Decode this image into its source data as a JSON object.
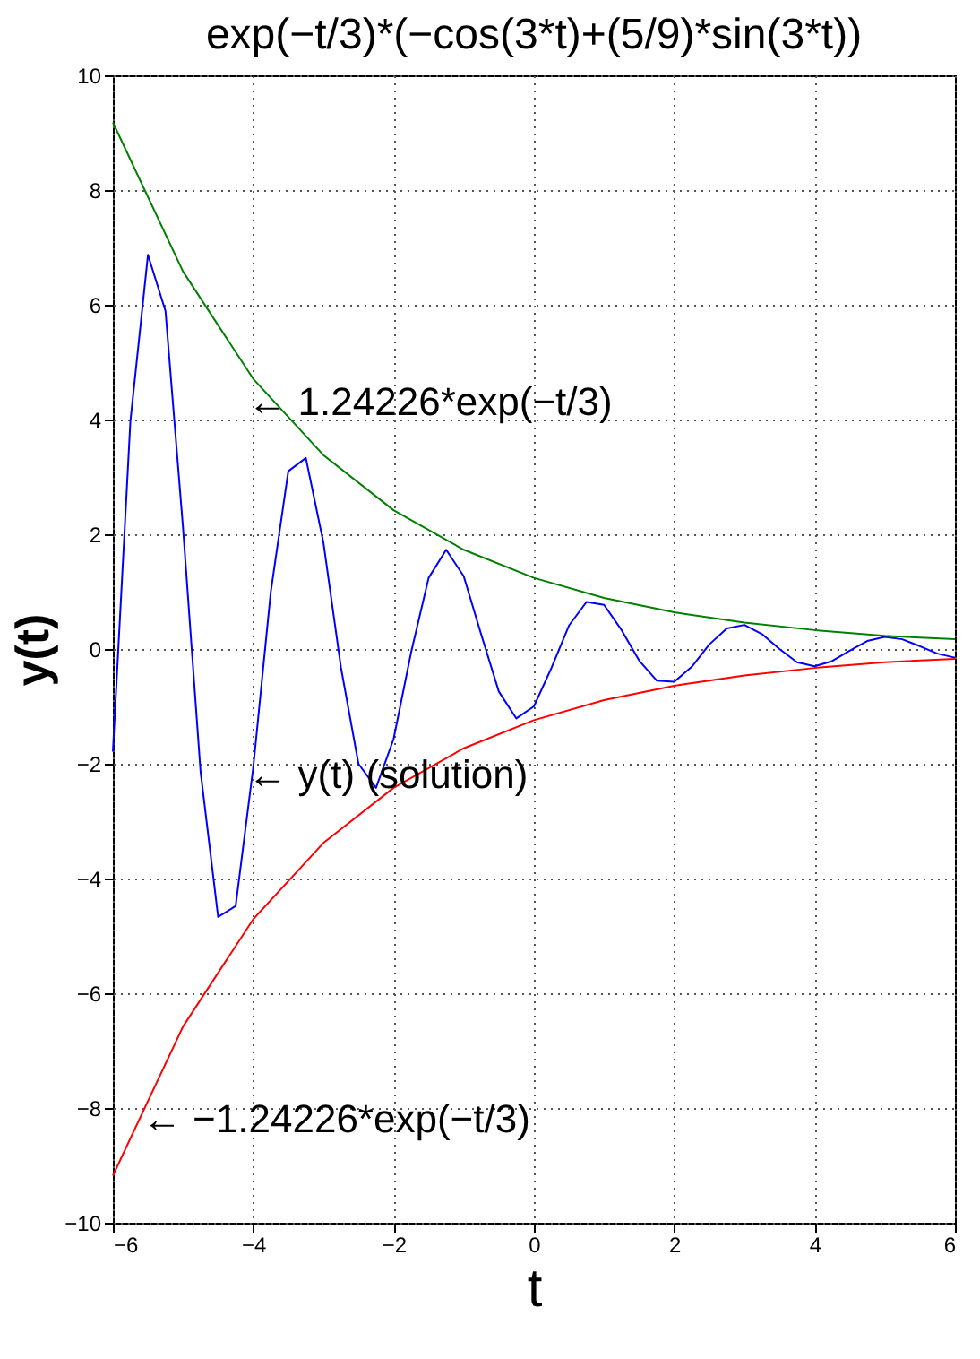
{
  "chart_data": {
    "type": "line",
    "title": "exp(−t/3)*(−cos(3*t)+(5/9)*sin(3*t))",
    "xlabel": "t",
    "ylabel": "y(t)",
    "xlim": [
      -6,
      6
    ],
    "ylim": [
      -10,
      10
    ],
    "xticks": [
      -6,
      -4,
      -2,
      0,
      2,
      4,
      6
    ],
    "yticks": [
      -10,
      -8,
      -6,
      -4,
      -2,
      0,
      2,
      4,
      6,
      8,
      10
    ],
    "grid": true,
    "line_style": "solid",
    "series": [
      {
        "color": "#0000ff",
        "x": [
          -6,
          -5.75,
          -5.5,
          -5.25,
          -5,
          -4.75,
          -4.5,
          -4.25,
          -4,
          -3.75,
          -3.5,
          -3.25,
          -3,
          -2.75,
          -2.5,
          -2.25,
          -2,
          -1.75,
          -1.5,
          -1.25,
          -1,
          -0.75,
          -0.5,
          -0.25,
          0,
          0.25,
          0.5,
          0.75,
          1,
          1.25,
          1.5,
          1.75,
          2,
          2.25,
          2.5,
          2.75,
          3,
          3.25,
          3.5,
          3.75,
          4,
          4.25,
          4.5,
          4.75,
          5,
          5.25,
          5.5,
          5.75,
          6
        ],
        "values": [
          -1.79,
          3.97,
          6.87,
          5.89,
          2.11,
          -2.14,
          -4.67,
          -4.48,
          -2.07,
          0.99,
          3.1,
          3.33,
          1.86,
          -0.32,
          -2.0,
          -2.42,
          -1.57,
          -0.06,
          1.24,
          1.73,
          1.27,
          0.25,
          -0.74,
          -1.21,
          -1.0,
          -0.33,
          0.41,
          0.82,
          0.77,
          0.33,
          -0.2,
          -0.55,
          -0.57,
          -0.31,
          0.08,
          0.36,
          0.42,
          0.26,
          0.0,
          -0.23,
          -0.3,
          -0.21,
          -0.03,
          0.14,
          0.21,
          0.17,
          0.05,
          -0.08,
          -0.15
        ]
      },
      {
        "color": "#008000",
        "x": [
          -6,
          -5,
          -4,
          -3,
          -2,
          -1,
          0,
          1,
          2,
          3,
          4,
          5,
          6
        ],
        "values": [
          9.18,
          6.58,
          4.71,
          3.38,
          2.42,
          1.73,
          1.24,
          0.89,
          0.64,
          0.46,
          0.33,
          0.23,
          0.17
        ]
      },
      {
        "color": "#ff0000",
        "x": [
          -6,
          -5,
          -4,
          -3,
          -2,
          -1,
          0,
          1,
          2,
          3,
          4,
          5,
          6
        ],
        "values": [
          -9.18,
          -6.58,
          -4.71,
          -3.38,
          -2.42,
          -1.73,
          -1.24,
          -0.89,
          -0.64,
          -0.46,
          -0.33,
          -0.23,
          -0.17
        ]
      }
    ],
    "annotations": [
      "← 1.24226*exp(−t/3)",
      "← y(t) (solution)",
      "← −1.24226*exp(−t/3)"
    ]
  }
}
